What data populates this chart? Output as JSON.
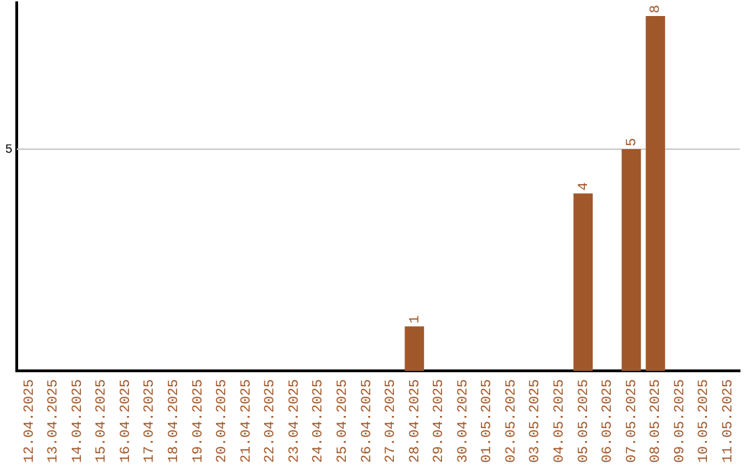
{
  "chart_data": {
    "type": "bar",
    "categories": [
      "12.04.2025",
      "13.04.2025",
      "14.04.2025",
      "15.04.2025",
      "16.04.2025",
      "17.04.2025",
      "18.04.2025",
      "19.04.2025",
      "20.04.2025",
      "21.04.2025",
      "22.04.2025",
      "23.04.2025",
      "24.04.2025",
      "25.04.2025",
      "26.04.2025",
      "27.04.2025",
      "28.04.2025",
      "29.04.2025",
      "30.04.2025",
      "01.05.2025",
      "02.05.2025",
      "03.05.2025",
      "04.05.2025",
      "05.05.2025",
      "06.05.2025",
      "07.05.2025",
      "08.05.2025",
      "09.05.2025",
      "10.05.2025",
      "11.05.2025"
    ],
    "values": [
      null,
      null,
      null,
      null,
      null,
      null,
      null,
      null,
      null,
      null,
      null,
      null,
      null,
      null,
      null,
      null,
      1,
      null,
      null,
      null,
      null,
      null,
      null,
      4,
      null,
      5,
      8,
      null,
      null,
      null
    ],
    "data_labels": true,
    "color": "#a0572a",
    "ylim": [
      0,
      8.3
    ],
    "ref_lines": [
      {
        "axis": "y",
        "value": 5,
        "label": "5",
        "color": "#c8c8c8"
      }
    ]
  }
}
